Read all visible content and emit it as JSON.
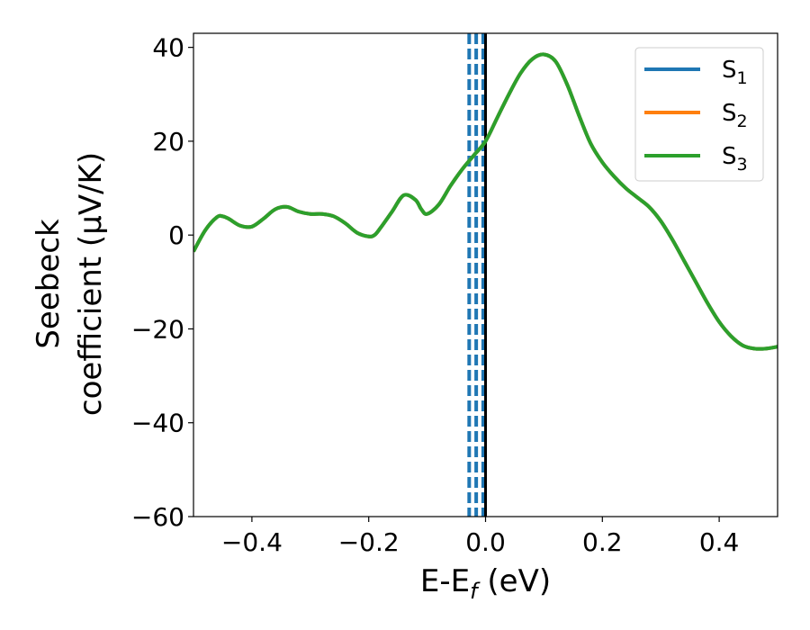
{
  "chart_data": {
    "type": "line",
    "xlabel": {
      "main": "E-E",
      "sub": "f",
      "unit": " (eV)"
    },
    "ylabel": {
      "line1": "Seebeck",
      "line2": "coefficient  (μV/K)"
    },
    "xlim": [
      -0.5,
      0.5
    ],
    "ylim": [
      -60,
      43
    ],
    "xticks": [
      -0.4,
      -0.2,
      0.0,
      0.2,
      0.4
    ],
    "xtick_labels": [
      "−0.4",
      "−0.2",
      "0.0",
      "0.2",
      "0.4"
    ],
    "yticks": [
      -60,
      -40,
      -20,
      0,
      20,
      40
    ],
    "ytick_labels": [
      "−60",
      "−40",
      "−20",
      "0",
      "20",
      "40"
    ],
    "grid": false,
    "legend_position": "top-right",
    "series": [
      {
        "name": "S",
        "sub": "1",
        "color": "#1f77b4"
      },
      {
        "name": "S",
        "sub": "2",
        "color": "#ff7f0e"
      },
      {
        "name": "S",
        "sub": "3",
        "color": "#2ca02c"
      }
    ],
    "curve": {
      "x": [
        -0.5,
        -0.48,
        -0.46,
        -0.45,
        -0.44,
        -0.42,
        -0.4,
        -0.38,
        -0.36,
        -0.34,
        -0.32,
        -0.3,
        -0.28,
        -0.26,
        -0.24,
        -0.22,
        -0.2,
        -0.19,
        -0.18,
        -0.16,
        -0.14,
        -0.12,
        -0.11,
        -0.1,
        -0.08,
        -0.06,
        -0.04,
        -0.02,
        0.0,
        0.02,
        0.04,
        0.06,
        0.08,
        0.1,
        0.12,
        0.14,
        0.16,
        0.18,
        0.2,
        0.22,
        0.24,
        0.26,
        0.28,
        0.3,
        0.32,
        0.34,
        0.36,
        0.38,
        0.4,
        0.42,
        0.44,
        0.46,
        0.48,
        0.5
      ],
      "y": [
        -3.5,
        1.0,
        3.8,
        4.0,
        3.5,
        2.0,
        1.8,
        3.5,
        5.5,
        6.0,
        5.0,
        4.5,
        4.5,
        4.0,
        2.5,
        0.5,
        -0.3,
        0.0,
        1.5,
        5.0,
        8.5,
        7.5,
        5.5,
        4.5,
        6.5,
        10.5,
        14.0,
        17.0,
        20.0,
        25.0,
        30.0,
        34.5,
        37.5,
        38.5,
        37.0,
        32.0,
        25.5,
        19.5,
        15.5,
        12.5,
        10.0,
        8.0,
        6.0,
        3.0,
        -1.0,
        -5.5,
        -10.0,
        -14.5,
        -18.5,
        -21.5,
        -23.5,
        -24.2,
        -24.2,
        -23.8
      ]
    },
    "vlines": [
      {
        "x": -0.028,
        "style": "dashed",
        "color": "#1f77b4"
      },
      {
        "x": -0.016,
        "style": "dashed",
        "color": "#1f77b4"
      },
      {
        "x": -0.004,
        "style": "dashed",
        "color": "#1f77b4"
      },
      {
        "x": 0.0,
        "style": "solid",
        "color": "#000000"
      }
    ]
  }
}
